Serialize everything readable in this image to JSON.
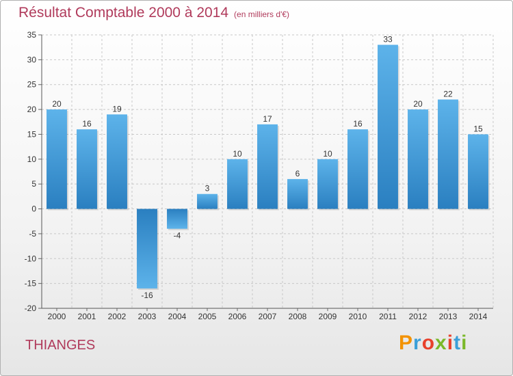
{
  "header": {
    "title": "Résultat Comptable 2000 à 2014",
    "subtitle": "(en milliers d'€)"
  },
  "commune": "THIANGES",
  "logo": {
    "text": "Proxiti",
    "letters": [
      {
        "ch": "P",
        "color": "#f39200"
      },
      {
        "ch": "r",
        "color": "#3b9fd8"
      },
      {
        "ch": "o",
        "color": "#e8412c"
      },
      {
        "ch": "x",
        "color": "#7ab829"
      },
      {
        "ch": "i",
        "color": "#e8412c"
      },
      {
        "ch": "t",
        "color": "#3b9fd8"
      },
      {
        "ch": "i",
        "color": "#7ab829"
      }
    ]
  },
  "chart_data": {
    "type": "bar",
    "title": "Résultat Comptable 2000 à 2014",
    "xlabel": "",
    "ylabel": "",
    "categories": [
      "2000",
      "2001",
      "2002",
      "2003",
      "2004",
      "2005",
      "2006",
      "2007",
      "2008",
      "2009",
      "2010",
      "2011",
      "2012",
      "2013",
      "2014"
    ],
    "values": [
      20,
      16,
      19,
      -16,
      -4,
      3,
      10,
      17,
      6,
      10,
      16,
      33,
      20,
      22,
      15
    ],
    "ylim": [
      -20,
      35
    ],
    "yticks": [
      35,
      30,
      25,
      20,
      15,
      10,
      5,
      0,
      -5,
      -10,
      -15,
      -20
    ],
    "grid": true,
    "bar_color": "#4a9fdc"
  }
}
